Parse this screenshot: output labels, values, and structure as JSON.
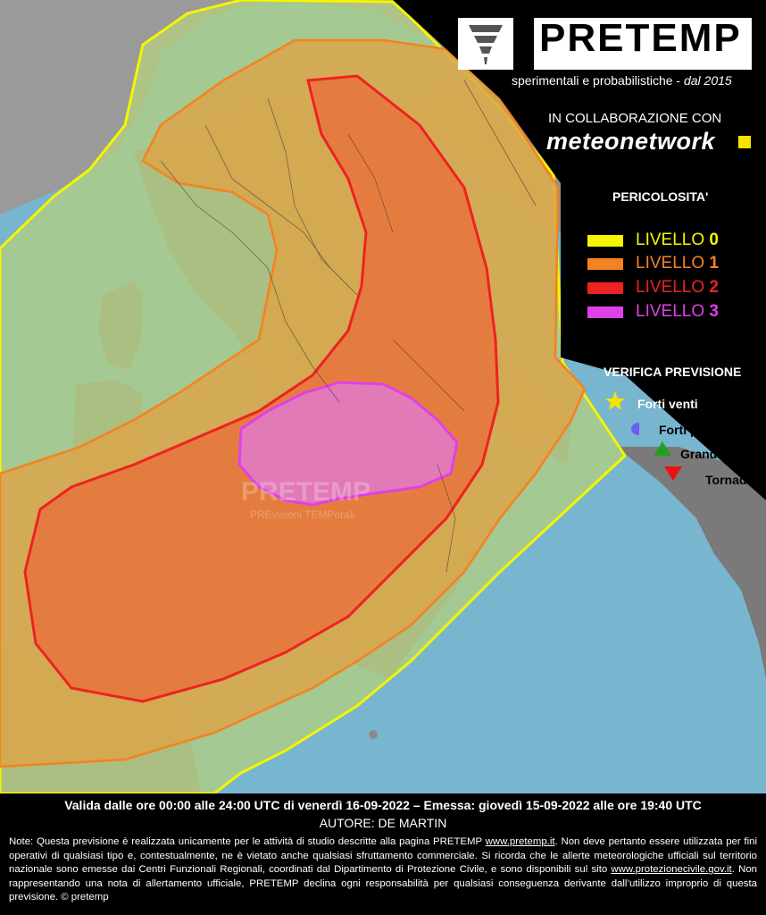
{
  "header": {
    "brand": "PRETEMP",
    "subtitle": "PREvisioni TEMPorali",
    "subtitle2": "sperimentali e probabilistiche - ",
    "since": "dal 2015",
    "collab": "IN COLLABORAZIONE CON",
    "partner": "meteonetwork"
  },
  "legend": {
    "title": "PERICOLOSITA'",
    "levels": [
      {
        "label": "LIVELLO ",
        "num": "0",
        "color": "#f5f500"
      },
      {
        "label": "LIVELLO ",
        "num": "1",
        "color": "#f58220"
      },
      {
        "label": "LIVELLO ",
        "num": "2",
        "color": "#ee2222"
      },
      {
        "label": "LIVELLO ",
        "num": "3",
        "color": "#e040e8"
      }
    ]
  },
  "verification": {
    "title": "VERIFICA PREVISIONE",
    "items": [
      {
        "label": "Forti venti",
        "icon": "star-icon",
        "color": "#f5e400"
      },
      {
        "label": "Forti piogge",
        "icon": "circle-icon",
        "color": "#6a5cf5"
      },
      {
        "label": "Grandinate",
        "icon": "triangle-up-icon",
        "color": "#20a020"
      },
      {
        "label": "Tornado",
        "icon": "triangle-down-icon",
        "color": "#ee1111"
      }
    ]
  },
  "watermark": {
    "brand": "PRETEMP",
    "sub": "PREvisioni TEMPorali"
  },
  "footer": {
    "validity": "Valida dalle ore 00:00 alle 24:00 UTC di venerdì 16-09-2022 – Emessa: giovedì 15-09-2022 alle ore 19:40 UTC",
    "author": "AUTORE: DE MARTIN",
    "note_1": "Note: Questa previsione è realizzata unicamente per le attività di studio descritte alla pagina PRETEMP ",
    "note_link1": "www.pretemp.it",
    "note_2": ". Non deve pertanto essere utilizzata per fini operativi di qualsiasi tipo e, contestualmente, ne è vietato anche qualsiasi sfruttamento commerciale. Si ricorda che le allerte meteorologiche ufficiali sul territorio nazionale sono emesse dai Centri Funzionali Regionali, coordinati dal Dipartimento di Protezione Civile, e sono disponibili sul sito ",
    "note_link2": "www.protezionecivile.gov.it",
    "note_3": ". Non rappresentando una nota di allertamento ufficiale, PRETEMP declina ogni responsabilità per qualsiasi conseguenza derivante dall’utilizzo improprio di questa previsione.  © pretemp"
  },
  "colors": {
    "sea": "#78b5cf",
    "land": "#8f8f8f",
    "level0_fill": "#a8d88a",
    "level1_fill": "#e0a040",
    "level2_fill": "#e86a3a",
    "level3_fill": "#e07ae0"
  }
}
